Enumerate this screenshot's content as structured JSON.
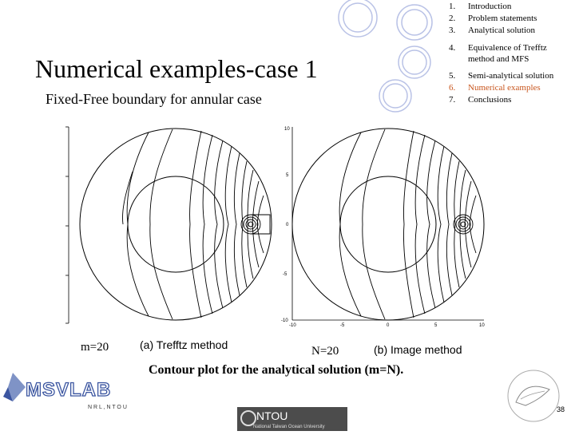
{
  "slide": {
    "title": "Numerical examples-case 1",
    "subtitle": "Fixed-Free boundary for annular case",
    "caption": "Contour plot for the analytical solution (m=N).",
    "page_number": "38",
    "accent_color": "#c8561e",
    "decor_color": "#b9c2e6"
  },
  "toc": [
    {
      "num": "1.",
      "text": "Introduction",
      "active": false
    },
    {
      "num": "2.",
      "text": "Problem statements",
      "active": false
    },
    {
      "num": "3.",
      "text": "Analytical solution",
      "active": false
    },
    {
      "num": "4.",
      "text": "Equivalence of Trefftz",
      "text2": "method and MFS",
      "active": false
    },
    {
      "num": "5.",
      "text": "Semi-analytical solution",
      "active": false
    },
    {
      "num": "6.",
      "text": "Numerical examples",
      "active": true
    },
    {
      "num": "7.",
      "text": "Conclusions",
      "active": false
    }
  ],
  "plots": {
    "left": {
      "param": "m=20",
      "label": "(a) Trefftz method"
    },
    "right": {
      "param": "N=20",
      "label": "(b) Image method",
      "yticks": [
        "10",
        "5",
        "0",
        "-5",
        "-10"
      ],
      "xticks": [
        "-10",
        "-5",
        "0",
        "5",
        "10"
      ]
    }
  },
  "logos": {
    "msvlab": "MSVLAB",
    "msvlab_sub": "N R L , N T O U",
    "ntou_abbr": "NTOU",
    "ntou_name": "National Taiwan Ocean University"
  }
}
